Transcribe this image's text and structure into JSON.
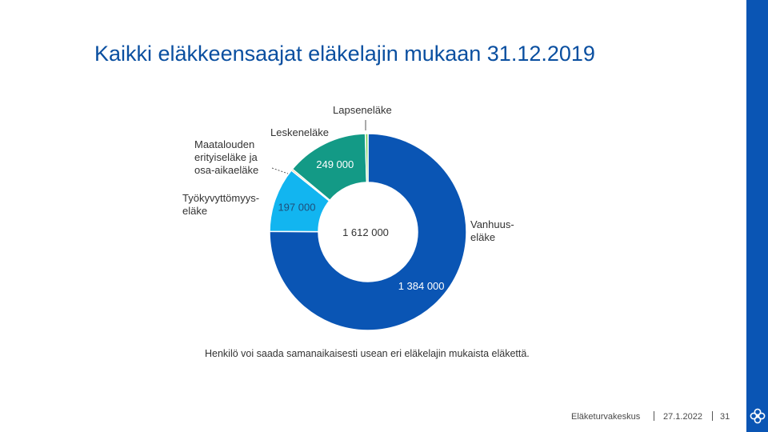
{
  "slide": {
    "title": "Kaikki eläkkeensaajat eläkelajin mukaan 31.12.2019",
    "note": "Henkilö voi saada samanaikaisesti usean eri eläkelajin mukaista eläkettä.",
    "footer_org": "Eläketurvakeskus",
    "footer_date": "27.1.2022",
    "footer_page": "31",
    "logo_icon": "etk-flower-logo-icon",
    "accent_color": "#0a55b4"
  },
  "chart_data": {
    "type": "pie",
    "donut": true,
    "center_label": "1 612 000",
    "center_value": 1612000,
    "categories": [
      "Vanhuus-eläke",
      "Työkyvyttömyys-eläke",
      "Maatalouden erityiseläke ja osa-aikaeläke",
      "Leskeneläke",
      "Lapseneläke"
    ],
    "label_lines": [
      [
        "Vanhuus-",
        "eläke"
      ],
      [
        "Työkyvyttömyys-",
        "eläke"
      ],
      [
        "Maatalouden",
        "erityiseläke ja",
        "osa-aikaeläke"
      ],
      [
        "Leskeneläke"
      ],
      [
        "Lapseneläke"
      ]
    ],
    "values": [
      1384000,
      197000,
      5000,
      249000,
      8000
    ],
    "value_labels": [
      "1 384 000",
      "197 000",
      "",
      "249 000",
      ""
    ],
    "colors": [
      "#0a55b4",
      "#12b5f0",
      "#e0a43c",
      "#139a86",
      "#7ad35a"
    ]
  }
}
